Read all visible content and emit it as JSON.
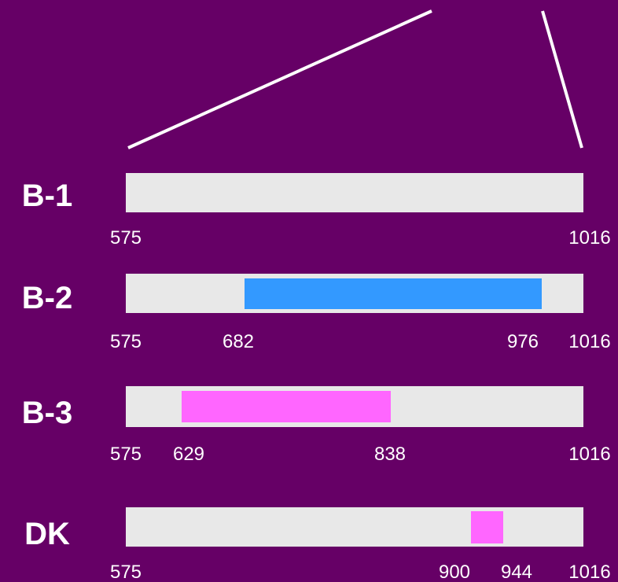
{
  "colors": {
    "background": "#660066",
    "track": "#e8e8e8",
    "blue_segment": "#3399ff",
    "magenta_segment": "#ff66ff",
    "lines": "#ffffff"
  },
  "scale": {
    "min": 575,
    "max": 1016
  },
  "rows": [
    {
      "label": "B-1",
      "segments": [],
      "ticks": [
        "575",
        "1016"
      ]
    },
    {
      "label": "B-2",
      "segments": [
        {
          "start": 682,
          "end": 976,
          "color": "#3399ff"
        }
      ],
      "ticks": [
        "575",
        "682",
        "976",
        "1016"
      ]
    },
    {
      "label": "B-3",
      "segments": [
        {
          "start": 629,
          "end": 838,
          "color": "#ff66ff"
        }
      ],
      "ticks": [
        "575",
        "629",
        "838",
        "1016"
      ]
    },
    {
      "label": "DK",
      "segments": [
        {
          "start": 900,
          "end": 944,
          "color": "#ff66ff"
        }
      ],
      "ticks": [
        "575",
        "900",
        "944",
        "1016"
      ]
    }
  ]
}
